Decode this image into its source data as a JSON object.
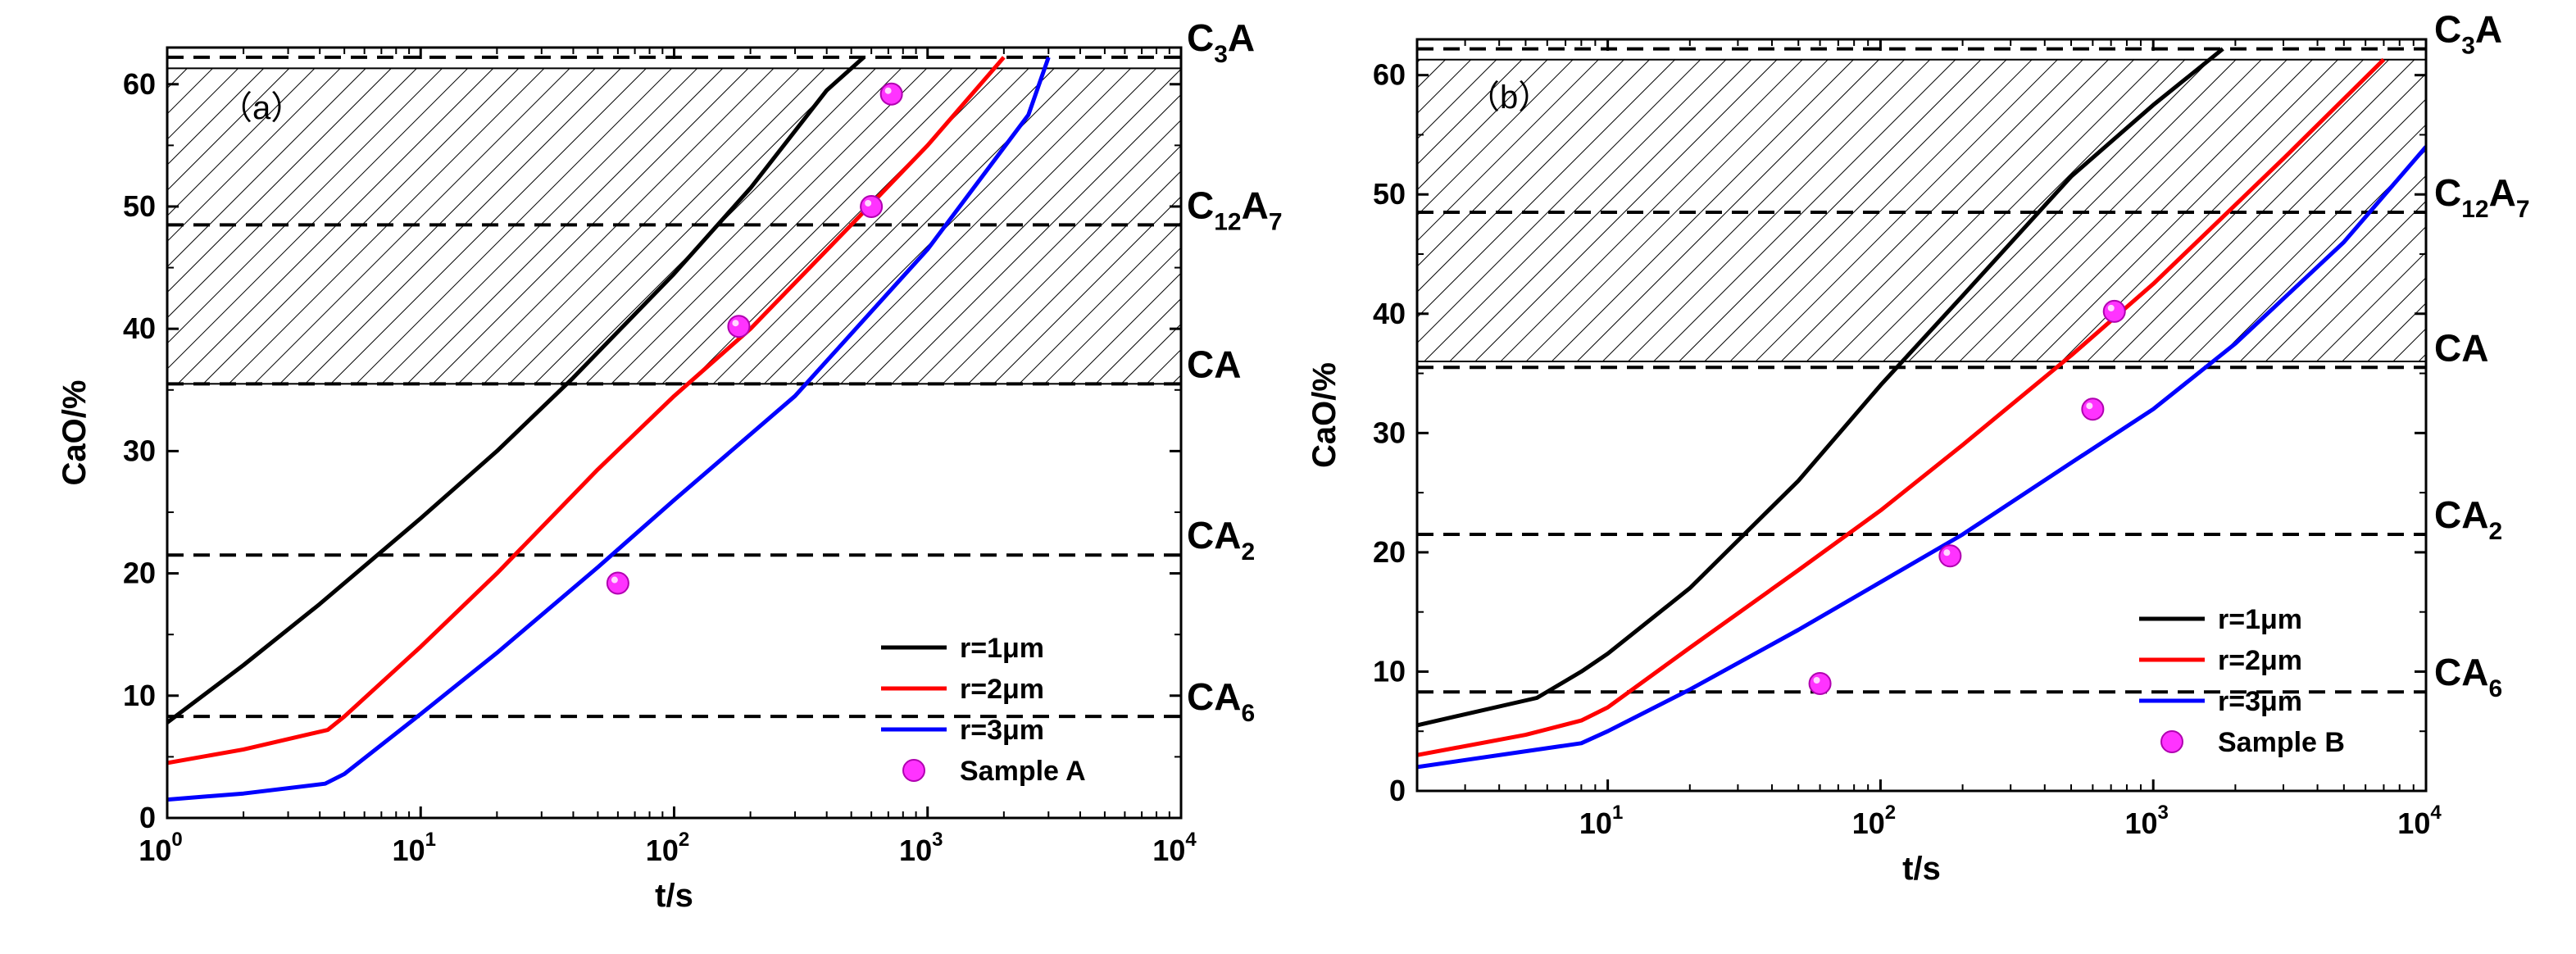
{
  "chart_data": [
    {
      "type": "line",
      "panel_label": "（a）",
      "xlabel": "t/s",
      "ylabel": "CaO/%",
      "xscale": "log",
      "xlim": [
        1,
        10000
      ],
      "ylim": [
        0,
        63
      ],
      "x_ticks": [
        1,
        10,
        100,
        1000,
        10000
      ],
      "y_ticks": [
        0,
        10,
        20,
        30,
        40,
        50,
        60
      ],
      "hatched_region": [
        35.5,
        61.3
      ],
      "phase_lines": [
        {
          "name": "CA6",
          "main": "CA",
          "sub": "6",
          "y": 8.3
        },
        {
          "name": "CA2",
          "main": "CA",
          "sub": "2",
          "y": 21.5
        },
        {
          "name": "CA",
          "main": "CA",
          "sub": "",
          "y": 35.5
        },
        {
          "name": "C12A7",
          "main": "C",
          "sub": "12",
          "main2": "A",
          "sub2": "7",
          "y": 48.5
        },
        {
          "name": "C3A",
          "main": "C",
          "sub": "3",
          "main2": "A",
          "sub2": "",
          "y": 62.2
        }
      ],
      "series": [
        {
          "name": "r=1μm",
          "color": "#000000",
          "x": [
            1,
            2,
            4,
            10,
            20,
            40,
            100,
            200,
            400,
            560
          ],
          "y": [
            7.8,
            12.5,
            17.5,
            24.5,
            30.0,
            36.0,
            44.5,
            51.5,
            59.5,
            62.2
          ]
        },
        {
          "name": "r=2μm",
          "color": "#ff0000",
          "x": [
            1,
            2,
            4.3,
            5,
            10,
            20,
            50,
            100,
            200,
            500,
            1000,
            2000
          ],
          "y": [
            4.5,
            5.6,
            7.2,
            8.3,
            14.0,
            20.0,
            28.5,
            34.5,
            40.0,
            48.5,
            55.0,
            62.2
          ]
        },
        {
          "name": "r=3μm",
          "color": "#0000ff",
          "x": [
            1,
            2,
            4.2,
            5,
            10,
            20,
            50,
            100,
            300,
            1000,
            2500,
            3000
          ],
          "y": [
            1.5,
            2.0,
            2.8,
            3.6,
            8.5,
            13.5,
            20.5,
            26.0,
            34.5,
            46.5,
            57.5,
            62.2
          ]
        }
      ],
      "scatter": {
        "name": "Sample A",
        "color": "#ff33ff",
        "x": [
          60,
          180,
          600,
          720
        ],
        "y": [
          19.2,
          40.2,
          50.0,
          59.2
        ]
      }
    },
    {
      "type": "line",
      "panel_label": "（b）",
      "xlabel": "t/s",
      "ylabel": "CaO/%",
      "xscale": "log",
      "xlim": [
        2,
        10000
      ],
      "ylim": [
        0,
        63
      ],
      "x_ticks": [
        10,
        100,
        1000,
        10000
      ],
      "y_ticks": [
        0,
        10,
        20,
        30,
        40,
        50,
        60
      ],
      "hatched_region": [
        36.0,
        61.3
      ],
      "phase_lines": [
        {
          "name": "CA6",
          "main": "CA",
          "sub": "6",
          "y": 8.3
        },
        {
          "name": "CA2",
          "main": "CA",
          "sub": "2",
          "y": 21.5
        },
        {
          "name": "CA",
          "main": "CA",
          "sub": "",
          "y": 35.5
        },
        {
          "name": "C12A7",
          "main": "C",
          "sub": "12",
          "main2": "A",
          "sub2": "7",
          "y": 48.5
        },
        {
          "name": "C3A",
          "main": "C",
          "sub": "3",
          "main2": "A",
          "sub2": "",
          "y": 62.2
        }
      ],
      "series": [
        {
          "name": "r=1μm",
          "color": "#000000",
          "x": [
            2,
            5.5,
            8,
            10,
            20,
            50,
            100,
            200,
            500,
            1000,
            1800
          ],
          "y": [
            5.5,
            7.8,
            10.0,
            11.5,
            17.0,
            26.0,
            34.0,
            41.5,
            51.5,
            57.5,
            62.2
          ]
        },
        {
          "name": "r=2μm",
          "color": "#ff0000",
          "x": [
            2,
            5,
            8,
            10,
            20,
            50,
            100,
            200,
            500,
            1000,
            3000,
            7000
          ],
          "y": [
            3.0,
            4.7,
            5.9,
            7.0,
            12.0,
            18.5,
            23.5,
            29.0,
            36.5,
            42.5,
            53.0,
            61.3
          ]
        },
        {
          "name": "r=3μm",
          "color": "#0000ff",
          "x": [
            2,
            8,
            10,
            20,
            50,
            100,
            200,
            500,
            1000,
            2000,
            5000,
            10000
          ],
          "y": [
            2.0,
            4.0,
            5.0,
            8.5,
            13.5,
            17.5,
            21.5,
            27.5,
            32.0,
            37.5,
            46.0,
            54.0
          ]
        }
      ],
      "scatter": {
        "name": "Sample B",
        "color": "#ff33ff",
        "x": [
          60,
          180,
          600,
          720
        ],
        "y": [
          9.0,
          19.7,
          32.0,
          40.2
        ]
      }
    }
  ]
}
